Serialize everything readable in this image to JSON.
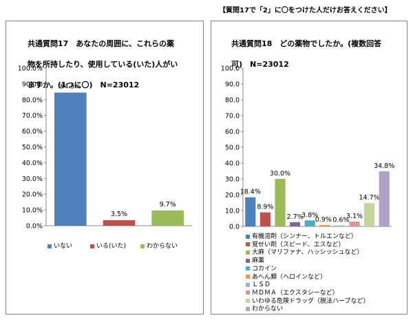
{
  "header": {
    "note": "【質問17で「2」に〇をつけた人だけお答えください】"
  },
  "chart_data": [
    {
      "type": "bar",
      "title": "共通質問17　あなたの周囲に、これらの薬物を所持したり、使用している(いた)人がいますか。(1つに〇)　N=23012",
      "title_lines": [
        "共通質問17　あなたの周囲に、これらの薬",
        "物を所持したり、使用している(いた)人がい",
        "ますか。(1つに〇)　N=23012"
      ],
      "categories": [
        "いない",
        "いる(いた)",
        "わからない"
      ],
      "values": [
        84.5,
        3.5,
        9.7
      ],
      "data_labels": [
        "84.5%",
        "3.5%",
        "9.7%"
      ],
      "colors": [
        "#4f81bd",
        "#c0504d",
        "#9bbb59"
      ],
      "ylim": [
        0,
        100
      ],
      "yticks": [
        "0.0%",
        "10.0%",
        "20.0%",
        "30.0%",
        "40.0%",
        "50.0%",
        "60.0%",
        "70.0%",
        "80.0%",
        "90.0%",
        "100.0%"
      ],
      "grid": false,
      "legend": "bottom"
    },
    {
      "type": "bar",
      "title": "共通質問18　どの薬物でしたか。(複数回答可)　N=23012",
      "title_lines": [
        "共通質問18　どの薬物でしたか。(複数回答",
        "可)　N=23012"
      ],
      "categories": [
        "有機溶剤（シンナー、トルエンなど）",
        "覚せい剤（スピード、エスなど）",
        "大麻（マリファナ、ハッシッシュなど）",
        "麻薬",
        "コカイン",
        "あへん類（ヘロインなど）",
        "ＬＳＤ",
        "ＭＤＭＡ（エクスタシーなど）",
        "いわゆる危険ドラッグ（脱法ハーブなど）",
        "わからない"
      ],
      "values": [
        18.4,
        8.9,
        30.0,
        2.7,
        3.8,
        0.9,
        0.6,
        3.1,
        14.7,
        34.8
      ],
      "data_labels": [
        "18.4%",
        "8.9%",
        "30.0%",
        "2.7%",
        "3.8%",
        "0.9%",
        "0.6%",
        "3.1%",
        "14.7%",
        "34.8%"
      ],
      "colors": [
        "#4f81bd",
        "#c0504d",
        "#9bbb59",
        "#8064a2",
        "#4bacc6",
        "#f79646",
        "#95b3d7",
        "#da9694",
        "#c3d69b",
        "#b1a0c7"
      ],
      "ylim": [
        0,
        100
      ],
      "yticks": [
        "0.0",
        "10.0",
        "20.0",
        "30.0",
        "40.0",
        "50.0",
        "60.0",
        "70.0",
        "80.0",
        "90.0",
        "100.0"
      ],
      "grid": false,
      "legend": "bottom"
    }
  ]
}
